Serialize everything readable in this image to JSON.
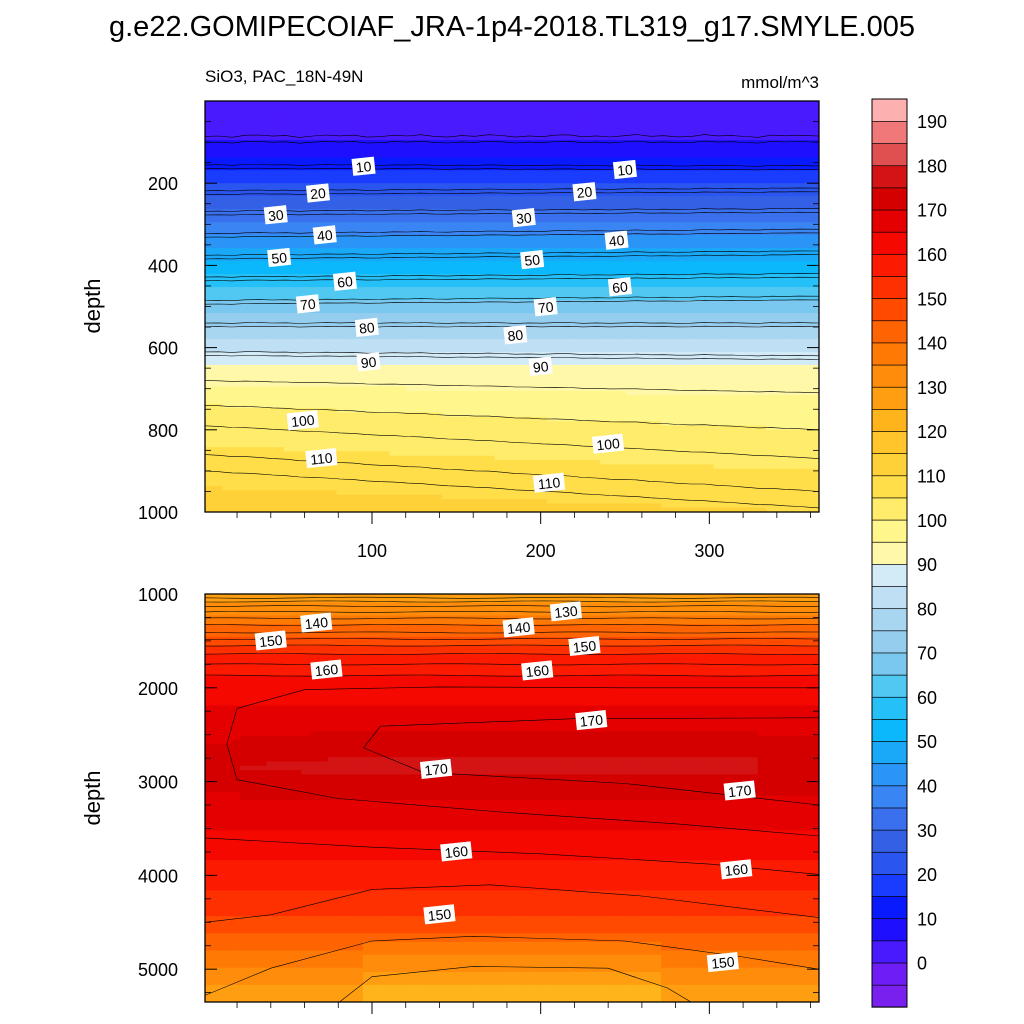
{
  "figure": {
    "title": "g.e22.GOMIPECOIAF_JRA-1p4-2018.TL319_g17.SMYLE.005",
    "left_string": "SiO3, PAC_18N-49N",
    "right_string": "mmol/m^3"
  },
  "chart_data": [
    {
      "type": "heatmap",
      "panel": "upper",
      "ylabel": "depth",
      "xlabel": "",
      "xlim": [
        1,
        365
      ],
      "ylim": [
        1000,
        0
      ],
      "x_ticks": [
        100,
        200,
        300
      ],
      "y_ticks": [
        200,
        400,
        600,
        800,
        1000
      ],
      "contour_levels": {
        "min": 0,
        "max": 190,
        "step": 5
      },
      "isolines": [
        {
          "value": 10,
          "depth": [
            155,
            158
          ]
        },
        {
          "value": 20,
          "depth": [
            218,
            212
          ]
        },
        {
          "value": 30,
          "depth": [
            268,
            262
          ]
        },
        {
          "value": 40,
          "depth": [
            322,
            312
          ]
        },
        {
          "value": 50,
          "depth": [
            375,
            365
          ]
        },
        {
          "value": 60,
          "depth": [
            428,
            420
          ]
        },
        {
          "value": 70,
          "depth": [
            485,
            475
          ]
        },
        {
          "value": 80,
          "depth": [
            540,
            540
          ]
        },
        {
          "value": 90,
          "depth": [
            610,
            620
          ]
        },
        {
          "value": 100,
          "depth": [
            740,
            800
          ]
        },
        {
          "value": 110,
          "depth": [
            860,
            950
          ]
        }
      ],
      "contour_labels": [
        {
          "text": "10",
          "x": 95,
          "y": 160
        },
        {
          "text": "10",
          "x": 250,
          "y": 168
        },
        {
          "text": "20",
          "x": 68,
          "y": 225
        },
        {
          "text": "20",
          "x": 226,
          "y": 222
        },
        {
          "text": "30",
          "x": 43,
          "y": 278
        },
        {
          "text": "30",
          "x": 190,
          "y": 285
        },
        {
          "text": "40",
          "x": 72,
          "y": 327
        },
        {
          "text": "40",
          "x": 245,
          "y": 340
        },
        {
          "text": "50",
          "x": 45,
          "y": 382
        },
        {
          "text": "50",
          "x": 195,
          "y": 387
        },
        {
          "text": "60",
          "x": 84,
          "y": 440
        },
        {
          "text": "60",
          "x": 247,
          "y": 453
        },
        {
          "text": "70",
          "x": 62,
          "y": 495
        },
        {
          "text": "70",
          "x": 203,
          "y": 502
        },
        {
          "text": "80",
          "x": 97,
          "y": 552
        },
        {
          "text": "80",
          "x": 185,
          "y": 570
        },
        {
          "text": "90",
          "x": 98,
          "y": 636
        },
        {
          "text": "90",
          "x": 200,
          "y": 647
        },
        {
          "text": "100",
          "x": 59,
          "y": 778
        },
        {
          "text": "100",
          "x": 240,
          "y": 835
        },
        {
          "text": "110",
          "x": 70,
          "y": 870
        },
        {
          "text": "110",
          "x": 205,
          "y": 930
        }
      ]
    },
    {
      "type": "heatmap",
      "panel": "lower",
      "ylabel": "depth",
      "xlabel": "",
      "xlim": [
        1,
        365
      ],
      "ylim": [
        5350,
        1000
      ],
      "x_ticks": [
        100,
        200,
        300
      ],
      "y_ticks": [
        1000,
        2000,
        3000,
        4000,
        5000
      ],
      "contour_levels": {
        "min": 0,
        "max": 190,
        "step": 5
      },
      "isolines": [
        {
          "value": 130,
          "depth": [
            1080,
            1080
          ]
        },
        {
          "value": 140,
          "depth": [
            1330,
            1380
          ]
        },
        {
          "value": 150,
          "depth": [
            1550,
            1550
          ]
        },
        {
          "value": 160,
          "depth": [
            1870,
            1870
          ]
        },
        {
          "value": 170,
          "depth": [
            2600,
            2600
          ]
        }
      ],
      "contour_labels": [
        {
          "text": "140",
          "x": 67,
          "y": 1310
        },
        {
          "text": "150",
          "x": 40,
          "y": 1500
        },
        {
          "text": "160",
          "x": 73,
          "y": 1810
        },
        {
          "text": "130",
          "x": 215,
          "y": 1190
        },
        {
          "text": "140",
          "x": 187,
          "y": 1360
        },
        {
          "text": "150",
          "x": 226,
          "y": 1560
        },
        {
          "text": "160",
          "x": 198,
          "y": 1820
        },
        {
          "text": "170",
          "x": 230,
          "y": 2350
        },
        {
          "text": "170",
          "x": 138,
          "y": 2870
        },
        {
          "text": "170",
          "x": 318,
          "y": 3100
        },
        {
          "text": "160",
          "x": 150,
          "y": 3750
        },
        {
          "text": "160",
          "x": 316,
          "y": 3940
        },
        {
          "text": "150",
          "x": 140,
          "y": 4420
        },
        {
          "text": "150",
          "x": 308,
          "y": 4930
        }
      ]
    }
  ],
  "colorbar": {
    "labels": [
      "190",
      "180",
      "170",
      "160",
      "150",
      "140",
      "130",
      "120",
      "110",
      "100",
      "90",
      "80",
      "70",
      "60",
      "50",
      "40",
      "30",
      "20",
      "10",
      "0"
    ],
    "colors": [
      "#7a20ee",
      "#6f1df5",
      "#4a1aff",
      "#1e10ff",
      "#0a1aff",
      "#1a3cff",
      "#2a55ee",
      "#3460e6",
      "#3a70ee",
      "#3a85f4",
      "#2a95f6",
      "#1aa8f8",
      "#0ab8fb",
      "#25c0f8",
      "#50c8f2",
      "#7ac8ef",
      "#95cdee",
      "#a8d6f1",
      "#bedff4",
      "#d2ebf7",
      "#fff8a8",
      "#fff68c",
      "#ffec6a",
      "#ffde4a",
      "#ffd138",
      "#ffc52a",
      "#ffb41c",
      "#ff9e10",
      "#ff8c0a",
      "#ff7a05",
      "#ff6402",
      "#ff4a00",
      "#ff3000",
      "#fc1a00",
      "#f40800",
      "#e40000",
      "#d40000",
      "#d41414",
      "#e05050",
      "#f07878",
      "#fcb0b0"
    ]
  }
}
